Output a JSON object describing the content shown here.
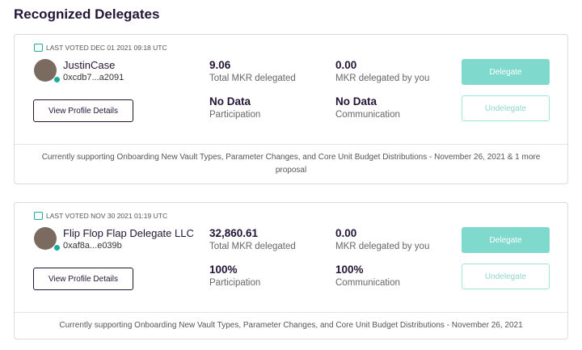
{
  "header": {
    "title": "Recognized Delegates"
  },
  "delegates": [
    {
      "last_voted": "LAST VOTED DEC 01 2021 09:18 UTC",
      "name": "JustinCase",
      "address": "0xcdb7...a2091",
      "stats": [
        {
          "value": "9.06",
          "label": "Total MKR delegated"
        },
        {
          "value": "0.00",
          "label": "MKR delegated by you"
        },
        {
          "value": "No Data",
          "label": "Participation"
        },
        {
          "value": "No Data",
          "label": "Communication"
        }
      ],
      "profile_button": "View Profile Details",
      "delegate_button": "Delegate",
      "undelegate_button": "Undelegate",
      "supporting": "Currently supporting Onboarding New Vault Types, Parameter Changes, and Core Unit Budget Distributions - November 26, 2021 & 1 more proposal"
    },
    {
      "last_voted": "LAST VOTED NOV 30 2021 01:19 UTC",
      "name": "Flip Flop Flap Delegate LLC",
      "address": "0xaf8a...e039b",
      "stats": [
        {
          "value": "32,860.61",
          "label": "Total MKR delegated"
        },
        {
          "value": "0.00",
          "label": "MKR delegated by you"
        },
        {
          "value": "100%",
          "label": "Participation"
        },
        {
          "value": "100%",
          "label": "Communication"
        }
      ],
      "profile_button": "View Profile Details",
      "delegate_button": "Delegate",
      "undelegate_button": "Undelegate",
      "supporting": "Currently supporting Onboarding New Vault Types, Parameter Changes, and Core Unit Budget Distributions - November 26, 2021"
    }
  ]
}
